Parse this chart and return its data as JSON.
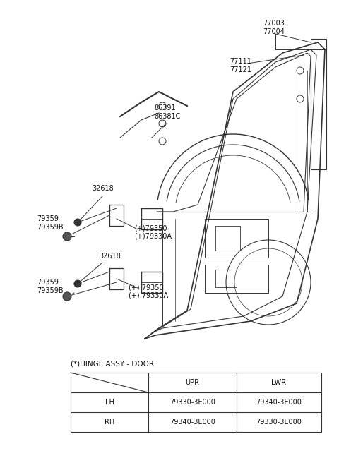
{
  "bg_color": "#ffffff",
  "line_color": "#333333",
  "text_color": "#111111",
  "font_size": 7.0,
  "hinge_label": "(*)HINGE ASSY - DOOR",
  "table_col_headers": [
    "UPR",
    "LWR"
  ],
  "table_row1": [
    "LH",
    "79330-3E000",
    "79340-3E000"
  ],
  "table_row2": [
    "RH",
    "79340-3E000",
    "79330-3E000"
  ],
  "label_77003": "77003\n77004",
  "label_77111": "77111\n77121",
  "label_86391": "86391\n86381C",
  "label_32618_u": "32618",
  "label_79359_u": "79359\n79359B",
  "label_79350_u": "(+)79350\n(+)79330A",
  "label_32618_l": "32618",
  "label_79359_l": "79359\n79359B",
  "label_79350_l": "(+) 79350\n(+) 79330A"
}
